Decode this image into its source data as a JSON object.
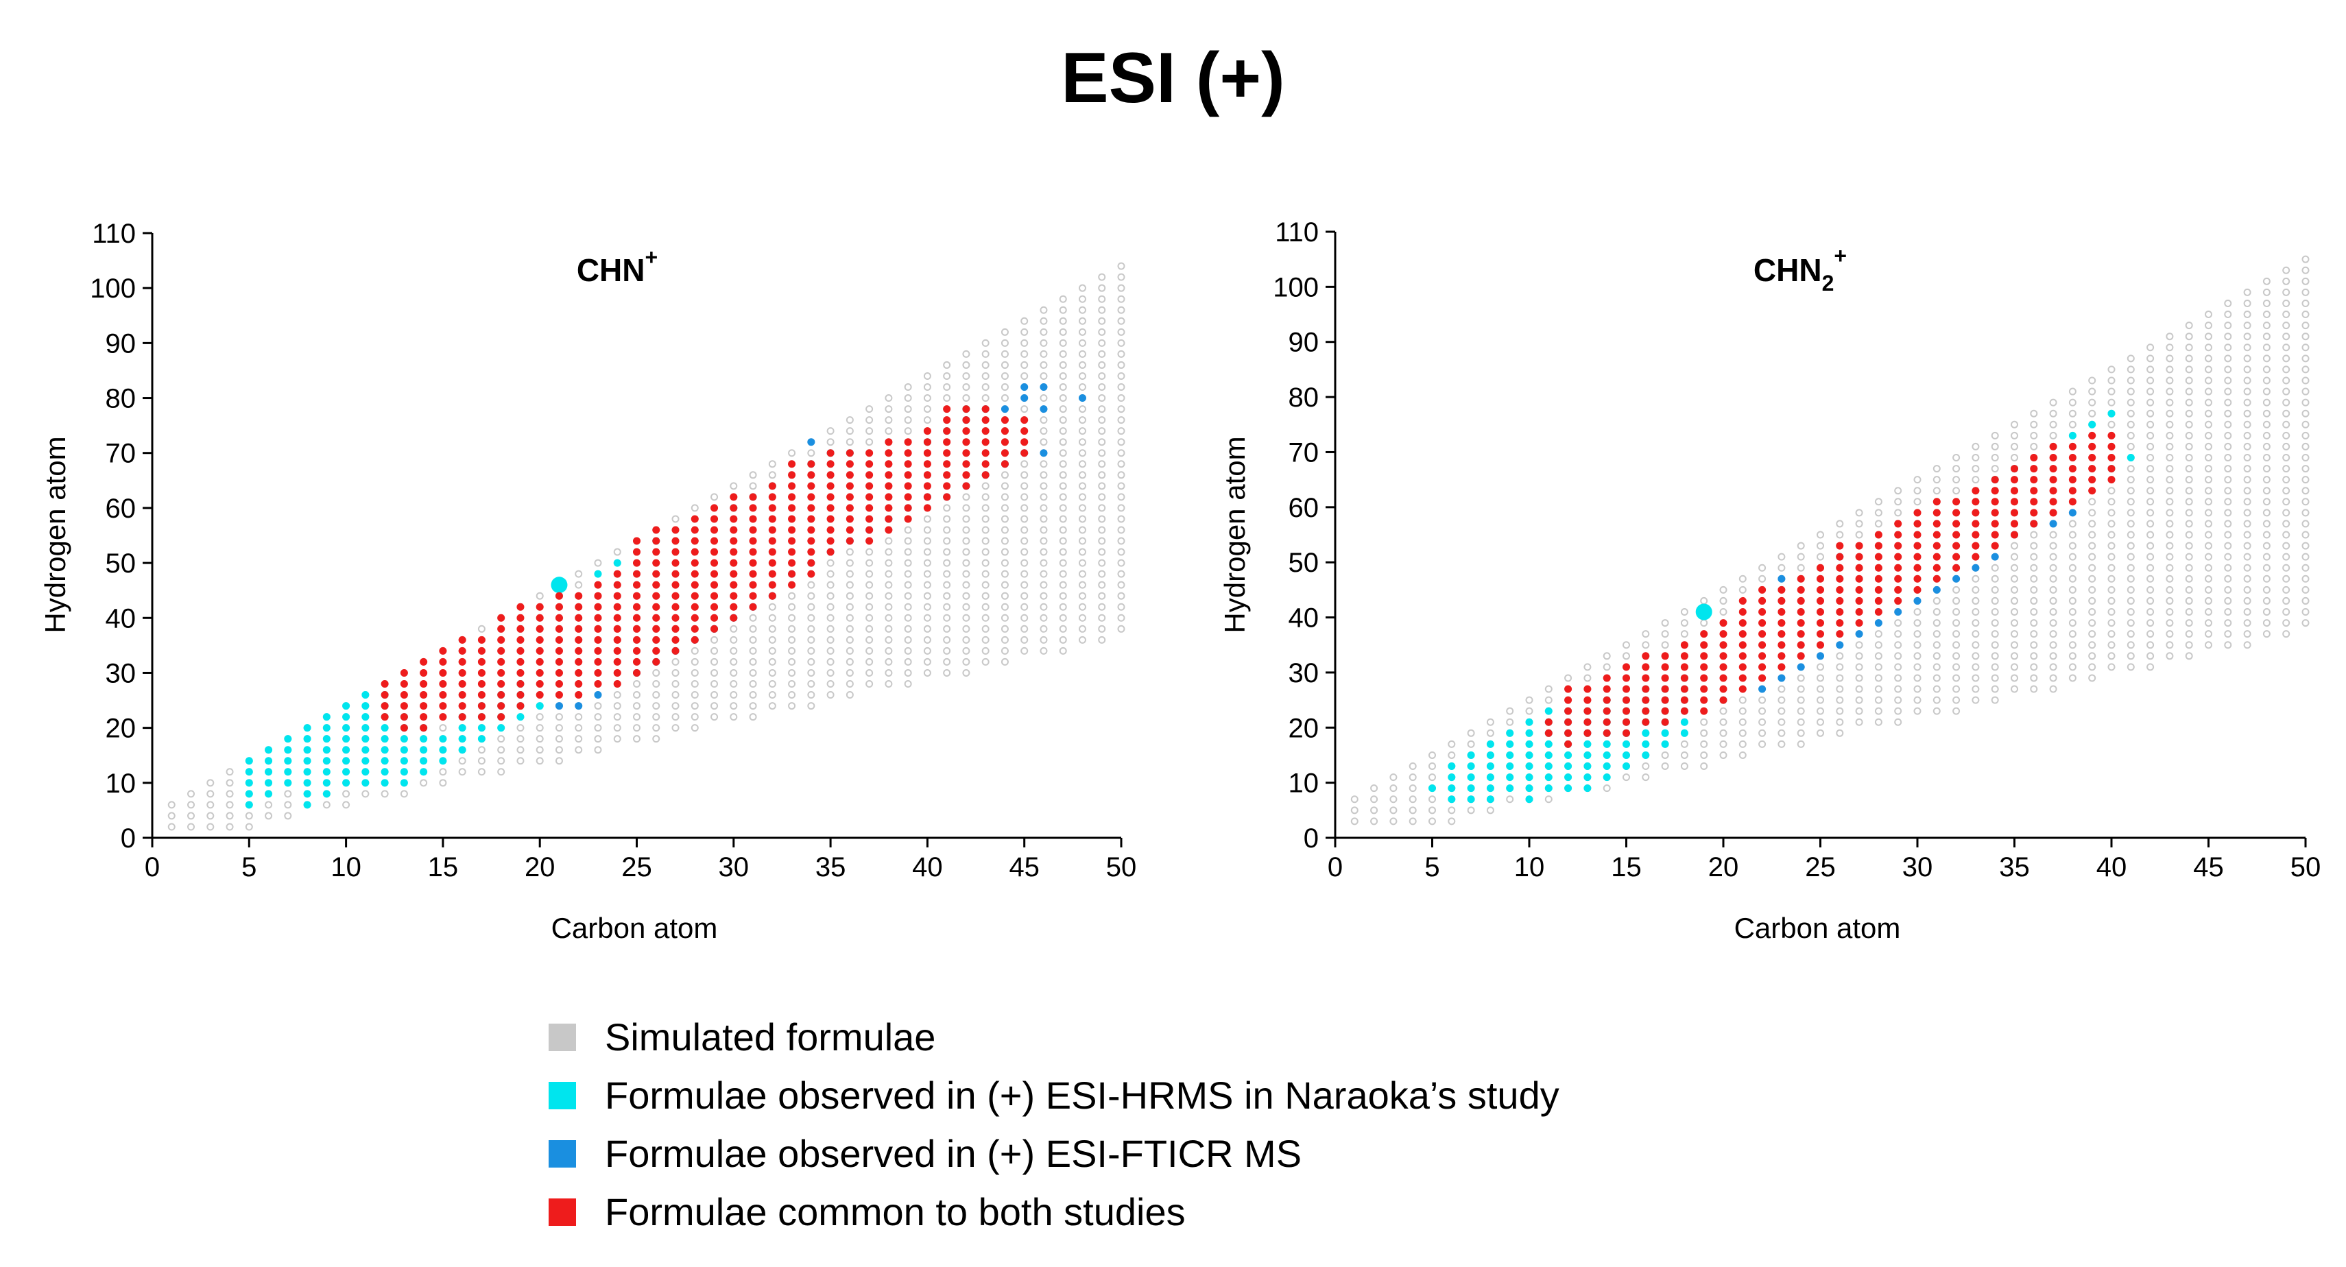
{
  "figure": {
    "title": "ESI (+)"
  },
  "colors": {
    "simulated": "#c8c8c8",
    "hrms": "#00e5ee",
    "fticr": "#1a8fe0",
    "common": "#ee1c1c"
  },
  "legend": [
    {
      "key": "simulated",
      "label": "Simulated formulae"
    },
    {
      "key": "hrms",
      "label": "Formulae observed in (+) ESI-HRMS in Naraoka’s study"
    },
    {
      "key": "fticr",
      "label": "Formulae observed in (+) ESI-FTICR MS"
    },
    {
      "key": "common",
      "label": "Formulae common to both studies"
    }
  ],
  "chart_data": [
    {
      "type": "scatter",
      "title": "CHN+",
      "title_main": "CHN",
      "title_sup": "+",
      "xlabel": "Carbon atom",
      "ylabel": "Hydrogen atom",
      "xlim": [
        0,
        50
      ],
      "ylim": [
        0,
        110
      ],
      "xticks": [
        0,
        5,
        10,
        15,
        20,
        25,
        30,
        35,
        40,
        45,
        50
      ],
      "yticks": [
        0,
        10,
        20,
        30,
        40,
        50,
        60,
        70,
        80,
        90,
        100,
        110
      ],
      "grid": false,
      "simulated_range": {
        "c_min": 1,
        "c_max": 50,
        "h_min": "max(2, 0.76*C - 1)",
        "h_max": "2*C + 4",
        "h_step": 2
      },
      "series": [
        {
          "name": "Formulae observed in (+) ESI-HRMS in Naraoka’s study",
          "key": "hrms",
          "ranges": [
            [
              5,
              6,
              14
            ],
            [
              6,
              8,
              16
            ],
            [
              7,
              10,
              18
            ],
            [
              8,
              6,
              20
            ],
            [
              9,
              8,
              22
            ],
            [
              10,
              10,
              24
            ],
            [
              11,
              10,
              26
            ],
            [
              12,
              10,
              26
            ],
            [
              13,
              10,
              22
            ],
            [
              14,
              12,
              20
            ],
            [
              15,
              14,
              18
            ],
            [
              16,
              16,
              22
            ],
            [
              17,
              18,
              24
            ],
            [
              18,
              20,
              26
            ],
            [
              19,
              22,
              28
            ]
          ],
          "points": [
            [
              20,
              24
            ],
            [
              21,
              46
            ],
            [
              23,
              48
            ],
            [
              24,
              50
            ],
            [
              26,
              54
            ],
            [
              30,
              60
            ],
            [
              31,
              62
            ],
            [
              32,
              64
            ],
            [
              34,
              68
            ],
            [
              35,
              70
            ],
            [
              36,
              70
            ],
            [
              40,
              72
            ],
            [
              41,
              74
            ],
            [
              42,
              78
            ]
          ]
        },
        {
          "name": "Formulae observed in (+) ESI-FTICR MS",
          "key": "fticr",
          "ranges": [],
          "points": [
            [
              21,
              24
            ],
            [
              22,
              24
            ],
            [
              23,
              26
            ],
            [
              25,
              30
            ],
            [
              26,
              32
            ],
            [
              27,
              34
            ],
            [
              28,
              36
            ],
            [
              29,
              38
            ],
            [
              30,
              40
            ],
            [
              31,
              42
            ],
            [
              32,
              44
            ],
            [
              33,
              48
            ],
            [
              34,
              50
            ],
            [
              35,
              52
            ],
            [
              36,
              54
            ],
            [
              37,
              56
            ],
            [
              38,
              58
            ],
            [
              39,
              60
            ],
            [
              40,
              62
            ],
            [
              41,
              62
            ],
            [
              42,
              64
            ],
            [
              43,
              66
            ],
            [
              44,
              68
            ],
            [
              45,
              70
            ],
            [
              46,
              70
            ],
            [
              34,
              72
            ],
            [
              42,
              76
            ],
            [
              43,
              78
            ],
            [
              44,
              78
            ],
            [
              45,
              80
            ],
            [
              45,
              82
            ],
            [
              46,
              82
            ],
            [
              46,
              78
            ],
            [
              48,
              80
            ]
          ]
        },
        {
          "name": "Formulae common to both studies",
          "key": "common",
          "ranges": [
            [
              12,
              22,
              28
            ],
            [
              13,
              20,
              30
            ],
            [
              14,
              20,
              32
            ],
            [
              15,
              22,
              34
            ],
            [
              16,
              22,
              36
            ],
            [
              17,
              22,
              36
            ],
            [
              18,
              22,
              40
            ],
            [
              19,
              24,
              42
            ],
            [
              20,
              26,
              42
            ],
            [
              21,
              26,
              44
            ],
            [
              22,
              26,
              44
            ],
            [
              23,
              28,
              46
            ],
            [
              24,
              28,
              48
            ],
            [
              25,
              30,
              54
            ],
            [
              26,
              32,
              56
            ],
            [
              27,
              34,
              56
            ],
            [
              28,
              36,
              58
            ],
            [
              29,
              38,
              60
            ],
            [
              30,
              40,
              62
            ],
            [
              31,
              42,
              62
            ],
            [
              32,
              44,
              64
            ],
            [
              33,
              46,
              68
            ],
            [
              34,
              48,
              68
            ],
            [
              35,
              52,
              70
            ],
            [
              36,
              54,
              70
            ],
            [
              37,
              54,
              70
            ],
            [
              38,
              56,
              72
            ],
            [
              39,
              58,
              72
            ],
            [
              40,
              60,
              74
            ],
            [
              41,
              62,
              78
            ],
            [
              42,
              64,
              78
            ],
            [
              43,
              66,
              78
            ],
            [
              44,
              68,
              76
            ],
            [
              45,
              70,
              76
            ]
          ],
          "points": []
        }
      ]
    },
    {
      "type": "scatter",
      "title": "CHN2+",
      "title_main": "CHN",
      "title_sub": "2",
      "title_sup": "+",
      "xlabel": "Carbon atom",
      "ylabel": "Hydrogen atom",
      "xlim": [
        0,
        50
      ],
      "ylim": [
        0,
        110
      ],
      "xticks": [
        0,
        5,
        10,
        15,
        20,
        25,
        30,
        35,
        40,
        45,
        50
      ],
      "yticks": [
        0,
        10,
        20,
        30,
        40,
        50,
        60,
        70,
        80,
        90,
        100,
        110
      ],
      "grid": false,
      "simulated_range": {
        "c_min": 1,
        "c_max": 50,
        "h_min": "max(3, 0.78*C - 1)",
        "h_max": "2*C + 5",
        "h_step": 2
      },
      "series": [
        {
          "name": "Formulae observed in (+) ESI-HRMS in Naraoka’s study",
          "key": "hrms",
          "ranges": [
            [
              5,
              9,
              9
            ],
            [
              6,
              7,
              13
            ],
            [
              7,
              7,
              15
            ],
            [
              8,
              7,
              17
            ],
            [
              9,
              9,
              19
            ],
            [
              10,
              7,
              21
            ],
            [
              11,
              9,
              23
            ],
            [
              12,
              9,
              23
            ],
            [
              13,
              9,
              23
            ],
            [
              14,
              11,
              25
            ],
            [
              15,
              13,
              25
            ],
            [
              16,
              15,
              27
            ],
            [
              17,
              17,
              27
            ],
            [
              18,
              19,
              29
            ]
          ],
          "points": [
            [
              19,
              41
            ],
            [
              20,
              25
            ],
            [
              34,
              65
            ],
            [
              35,
              67
            ],
            [
              38,
              73
            ],
            [
              39,
              75
            ],
            [
              40,
              77
            ],
            [
              40,
              67
            ],
            [
              41,
              69
            ]
          ]
        },
        {
          "name": "Formulae observed in (+) ESI-FTICR MS",
          "key": "fticr",
          "ranges": [],
          "points": [
            [
              22,
              27
            ],
            [
              23,
              29
            ],
            [
              24,
              31
            ],
            [
              25,
              33
            ],
            [
              26,
              35
            ],
            [
              27,
              37
            ],
            [
              28,
              39
            ],
            [
              29,
              41
            ],
            [
              30,
              43
            ],
            [
              31,
              45
            ],
            [
              32,
              47
            ],
            [
              33,
              49
            ],
            [
              34,
              51
            ],
            [
              35,
              55
            ],
            [
              36,
              57
            ],
            [
              37,
              57
            ],
            [
              38,
              59
            ],
            [
              23,
              47
            ],
            [
              26,
              51
            ]
          ]
        },
        {
          "name": "Formulae common to both studies",
          "key": "common",
          "ranges": [
            [
              11,
              19,
              21
            ],
            [
              12,
              17,
              27
            ],
            [
              13,
              19,
              27
            ],
            [
              14,
              19,
              29
            ],
            [
              15,
              19,
              31
            ],
            [
              16,
              21,
              33
            ],
            [
              17,
              21,
              33
            ],
            [
              18,
              23,
              35
            ],
            [
              19,
              23,
              37
            ],
            [
              20,
              25,
              39
            ],
            [
              21,
              27,
              43
            ],
            [
              22,
              29,
              45
            ],
            [
              23,
              31,
              45
            ],
            [
              24,
              33,
              47
            ],
            [
              25,
              35,
              49
            ],
            [
              26,
              37,
              53
            ],
            [
              27,
              39,
              53
            ],
            [
              28,
              41,
              55
            ],
            [
              29,
              43,
              57
            ],
            [
              30,
              45,
              59
            ],
            [
              31,
              47,
              61
            ],
            [
              32,
              49,
              61
            ],
            [
              33,
              51,
              63
            ],
            [
              34,
              53,
              65
            ],
            [
              35,
              55,
              67
            ],
            [
              36,
              57,
              69
            ],
            [
              37,
              59,
              71
            ],
            [
              38,
              61,
              71
            ],
            [
              39,
              63,
              73
            ],
            [
              40,
              65,
              73
            ]
          ],
          "points": []
        }
      ]
    }
  ]
}
